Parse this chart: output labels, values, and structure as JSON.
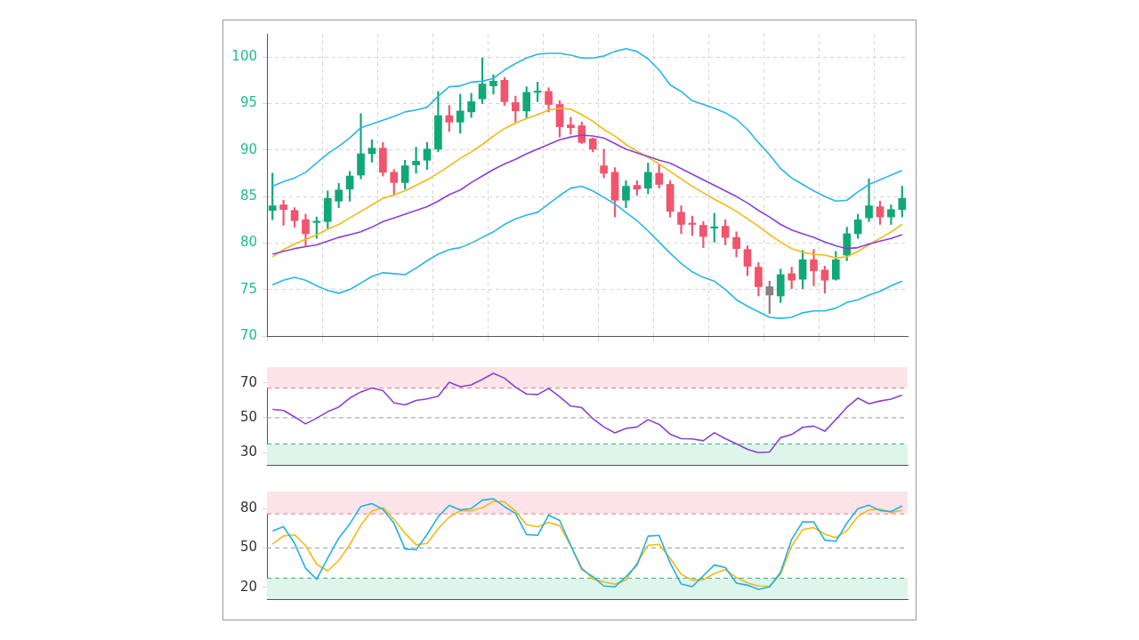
{
  "chart_data": [
    {
      "type": "candlestick",
      "categories": [
        null,
        null,
        null,
        null,
        null,
        null,
        null,
        null,
        null,
        null,
        null,
        null,
        null,
        null,
        null,
        null,
        null,
        null,
        null,
        null,
        null,
        null,
        null,
        null,
        null,
        null,
        null,
        null,
        null,
        null,
        null,
        null,
        null,
        null,
        null,
        null,
        null,
        null,
        null,
        null,
        null,
        null,
        null,
        null,
        null,
        null,
        null,
        null,
        null,
        null,
        null,
        null,
        null,
        null,
        null,
        null,
        null,
        null
      ],
      "ohlc": [
        [
          83.5,
          87.5,
          82.5,
          84.0
        ],
        [
          84.1,
          84.6,
          81.9,
          83.6
        ],
        [
          83.5,
          83.8,
          81.7,
          82.4
        ],
        [
          82.5,
          83.1,
          79.6,
          81.0
        ],
        [
          82.2,
          82.8,
          80.5,
          82.3
        ],
        [
          82.3,
          85.6,
          81.6,
          84.8
        ],
        [
          84.5,
          86.4,
          83.8,
          85.7
        ],
        [
          85.8,
          87.7,
          84.5,
          87.2
        ],
        [
          87.3,
          93.9,
          86.9,
          89.6
        ],
        [
          89.6,
          91.1,
          88.7,
          90.2
        ],
        [
          90.2,
          90.8,
          87.2,
          87.6
        ],
        [
          87.6,
          87.9,
          85.1,
          86.5
        ],
        [
          86.5,
          88.9,
          85.8,
          88.3
        ],
        [
          88.4,
          90.3,
          87.5,
          88.8
        ],
        [
          88.9,
          90.8,
          87.9,
          90.1
        ],
        [
          90.1,
          96.3,
          89.8,
          93.7
        ],
        [
          93.7,
          94.8,
          92.0,
          93.0
        ],
        [
          93.0,
          96.0,
          91.8,
          94.2
        ],
        [
          94.1,
          96.1,
          93.5,
          95.2
        ],
        [
          95.5,
          99.9,
          95.0,
          97.1
        ],
        [
          96.9,
          98.1,
          96.0,
          97.4
        ],
        [
          97.5,
          97.8,
          94.8,
          95.2
        ],
        [
          95.1,
          95.8,
          93.0,
          94.2
        ],
        [
          94.2,
          96.8,
          93.4,
          96.2
        ],
        [
          96.2,
          97.3,
          95.2,
          96.3
        ],
        [
          96.3,
          96.7,
          94.1,
          94.9
        ],
        [
          94.9,
          95.3,
          91.4,
          92.5
        ],
        [
          92.7,
          93.5,
          91.7,
          92.4
        ],
        [
          92.6,
          93.0,
          90.7,
          90.8
        ],
        [
          91.2,
          91.3,
          89.8,
          90.1
        ],
        [
          88.3,
          90.1,
          87.0,
          87.5
        ],
        [
          87.6,
          88.1,
          82.8,
          84.6
        ],
        [
          84.6,
          86.7,
          83.8,
          86.1
        ],
        [
          86.2,
          86.7,
          85.1,
          85.8
        ],
        [
          85.9,
          88.6,
          85.3,
          87.6
        ],
        [
          87.5,
          88.5,
          85.9,
          86.3
        ],
        [
          86.3,
          86.7,
          82.8,
          83.4
        ],
        [
          83.3,
          84.0,
          81.0,
          82.0
        ],
        [
          82.1,
          82.9,
          80.8,
          82.0
        ],
        [
          81.9,
          82.3,
          79.5,
          80.7
        ],
        [
          81.6,
          83.2,
          80.1,
          81.7
        ],
        [
          81.8,
          82.5,
          79.8,
          80.6
        ],
        [
          80.6,
          81.2,
          78.5,
          79.4
        ],
        [
          79.3,
          79.7,
          76.5,
          77.5
        ],
        [
          77.4,
          77.9,
          74.3,
          75.3
        ],
        [
          75.3,
          75.9,
          72.4,
          74.4
        ],
        [
          74.3,
          77.2,
          73.6,
          76.6
        ],
        [
          76.7,
          77.4,
          75.1,
          76.0
        ],
        [
          76.1,
          79.2,
          75.1,
          78.2
        ],
        [
          78.2,
          79.3,
          75.4,
          77.0
        ],
        [
          77.1,
          77.5,
          74.6,
          76.0
        ],
        [
          76.1,
          79.1,
          76.0,
          78.2
        ],
        [
          78.7,
          81.7,
          78.1,
          81.0
        ],
        [
          81.0,
          83.1,
          80.5,
          82.5
        ],
        [
          82.7,
          86.9,
          82.3,
          84.0
        ],
        [
          83.9,
          84.5,
          82.0,
          82.8
        ],
        [
          82.8,
          84.1,
          82.0,
          83.6
        ],
        [
          83.6,
          86.1,
          82.8,
          84.8
        ]
      ],
      "colors": [
        "#10a877",
        "#f2546e",
        "#f2546e",
        "#f2546e",
        "#10a877",
        "#10a877",
        "#10a877",
        "#10a877",
        "#10a877",
        "#10a877",
        "#f2546e",
        "#f2546e",
        "#10a877",
        "#10a877",
        "#10a877",
        "#10a877",
        "#f2546e",
        "#10a877",
        "#10a877",
        "#10a877",
        "#10a877",
        "#f2546e",
        "#f2546e",
        "#10a877",
        "#10a877",
        "#f2546e",
        "#f2546e",
        "#f2546e",
        "#f2546e",
        "#f2546e",
        "#f2546e",
        "#f2546e",
        "#10a877",
        "#f2546e",
        "#10a877",
        "#f2546e",
        "#f2546e",
        "#f2546e",
        "#f2546e",
        "#f2546e",
        "#10a877",
        "#f2546e",
        "#f2546e",
        "#f2546e",
        "#f2546e",
        "#8c7f80",
        "#10a877",
        "#f2546e",
        "#10a877",
        "#f2546e",
        "#f2546e",
        "#10a877",
        "#10a877",
        "#10a877",
        "#10a877",
        "#f2546e",
        "#10a877",
        "#10a877"
      ],
      "series": [
        {
          "type": "line",
          "color": "#29b6e8",
          "values": [
            86.1,
            86.6,
            87.0,
            87.6,
            88.6,
            89.6,
            90.4,
            91.3,
            92.4,
            92.8,
            93.2,
            93.6,
            94.1,
            94.3,
            94.6,
            95.8,
            96.8,
            96.9,
            97.3,
            97.4,
            97.7,
            98.6,
            99.3,
            99.9,
            100.3,
            100.4,
            100.4,
            100.2,
            99.9,
            99.9,
            100.1,
            100.6,
            100.9,
            100.6,
            99.8,
            98.6,
            97.0,
            96.3,
            95.3,
            94.9,
            94.5,
            94.0,
            93.3,
            92.2,
            90.8,
            89.5,
            88.0,
            87.0,
            86.3,
            85.6,
            85.0,
            84.5,
            84.6,
            85.5,
            86.3,
            86.8,
            87.3,
            87.8
          ]
        },
        {
          "type": "line",
          "color": "#29b6e8",
          "values": [
            75.5,
            76.0,
            76.3,
            76.0,
            75.4,
            74.9,
            74.6,
            75.0,
            75.7,
            76.4,
            76.8,
            76.7,
            76.6,
            77.3,
            78.1,
            78.8,
            79.3,
            79.5,
            80.0,
            80.6,
            81.2,
            82.0,
            82.6,
            83.0,
            83.3,
            84.2,
            85.1,
            85.9,
            86.1,
            85.6,
            84.9,
            84.2,
            83.3,
            82.4,
            81.3,
            80.1,
            78.9,
            77.8,
            76.9,
            76.3,
            75.9,
            75.0,
            73.9,
            73.2,
            72.6,
            72.0,
            71.9,
            72.0,
            72.5,
            72.7,
            72.7,
            73.0,
            73.6,
            73.9,
            74.4,
            74.8,
            75.4,
            75.9
          ]
        },
        {
          "type": "line",
          "color": "#8e3fd6",
          "values": [
            78.8,
            79.1,
            79.4,
            79.6,
            79.8,
            80.2,
            80.6,
            80.9,
            81.2,
            81.7,
            82.3,
            82.7,
            83.1,
            83.5,
            83.9,
            84.5,
            85.2,
            85.7,
            86.5,
            87.2,
            87.9,
            88.5,
            89.0,
            89.6,
            90.1,
            90.6,
            91.1,
            91.4,
            91.6,
            91.5,
            91.3,
            90.7,
            90.1,
            89.7,
            89.3,
            88.9,
            88.6,
            88.0,
            87.4,
            86.8,
            86.2,
            85.6,
            85.0,
            84.3,
            83.5,
            82.8,
            82.0,
            81.4,
            81.0,
            80.6,
            80.1,
            79.7,
            79.4,
            79.5,
            79.9,
            80.2,
            80.5,
            80.9
          ]
        },
        {
          "type": "line",
          "color": "#f5b915",
          "values": [
            78.5,
            79.3,
            79.9,
            80.4,
            80.9,
            81.5,
            82.0,
            82.7,
            83.4,
            84.1,
            84.8,
            85.2,
            85.6,
            86.2,
            86.8,
            87.5,
            88.3,
            89.1,
            89.8,
            90.6,
            91.5,
            92.3,
            92.9,
            93.4,
            93.8,
            94.3,
            94.5,
            94.4,
            93.8,
            93.1,
            92.2,
            91.5,
            90.6,
            89.9,
            89.2,
            88.5,
            87.7,
            86.9,
            86.1,
            85.4,
            84.7,
            84.1,
            83.4,
            82.6,
            81.8,
            80.9,
            80.1,
            79.4,
            79.0,
            78.8,
            78.7,
            78.4,
            78.5,
            79.1,
            79.8,
            80.5,
            81.2,
            82.0
          ]
        }
      ],
      "ylim": [
        70,
        102.5
      ],
      "yticks": [
        70,
        75,
        80,
        85,
        90,
        95,
        100
      ],
      "grid": true,
      "tick_labels": "y"
    },
    {
      "type": "line",
      "categories": [
        null,
        null,
        null,
        null,
        null,
        null,
        null,
        null,
        null,
        null,
        null,
        null,
        null,
        null,
        null,
        null,
        null,
        null,
        null,
        null,
        null,
        null,
        null,
        null,
        null,
        null,
        null,
        null,
        null,
        null,
        null,
        null,
        null,
        null,
        null,
        null,
        null,
        null,
        null,
        null,
        null,
        null,
        null,
        null,
        null,
        null,
        null,
        null,
        null,
        null,
        null,
        null,
        null,
        null,
        null,
        null,
        null,
        null
      ],
      "series": [
        {
          "color": "#8e3fd6",
          "values": [
            54.8,
            54.2,
            50.5,
            46.5,
            49.8,
            53.5,
            56.1,
            61.3,
            64.8,
            67.0,
            65.5,
            58.5,
            57.4,
            59.9,
            60.8,
            62.3,
            70.3,
            67.8,
            68.8,
            72.0,
            75.4,
            72.7,
            67.5,
            63.6,
            63.3,
            66.8,
            62.0,
            56.7,
            55.8,
            49.5,
            44.7,
            41.3,
            43.9,
            44.7,
            48.9,
            46.2,
            40.6,
            38.0,
            37.9,
            36.8,
            41.4,
            38.0,
            35.1,
            31.9,
            30.0,
            30.4,
            38.6,
            40.4,
            44.5,
            45.2,
            42.3,
            49.0,
            56.0,
            61.3,
            58.0,
            59.6,
            60.7,
            63.0
          ]
        }
      ],
      "ylim": [
        23,
        79
      ],
      "yticks": [
        30,
        50,
        70
      ],
      "tick_labels": "y",
      "bands": [
        {
          "axis": "y",
          "from": 67,
          "to": 79,
          "color": "#fde4e8"
        },
        {
          "axis": "y",
          "from": 23,
          "to": 35,
          "color": "#ddf5ea"
        }
      ],
      "ref_lines": [
        {
          "axis": "y",
          "value": 67,
          "color": "#e8788c",
          "line_style": "dashed"
        },
        {
          "axis": "y",
          "value": 50,
          "color": "#9a9a9a",
          "line_style": "dashed"
        },
        {
          "axis": "y",
          "value": 35,
          "color": "#2bb57a",
          "line_style": "dashed"
        }
      ]
    },
    {
      "type": "line",
      "categories": [
        null,
        null,
        null,
        null,
        null,
        null,
        null,
        null,
        null,
        null,
        null,
        null,
        null,
        null,
        null,
        null,
        null,
        null,
        null,
        null,
        null,
        null,
        null,
        null,
        null,
        null,
        null,
        null,
        null,
        null,
        null,
        null,
        null,
        null,
        null,
        null,
        null,
        null,
        null,
        null,
        null,
        null,
        null,
        null,
        null,
        null,
        null,
        null,
        null,
        null,
        null,
        null,
        null,
        null,
        null,
        null,
        null,
        null
      ],
      "series": [
        {
          "color": "#22b0e6",
          "values": [
            63.0,
            66.2,
            53.5,
            34.5,
            26.2,
            42.2,
            57.5,
            68.3,
            81.7,
            83.9,
            79.5,
            68.9,
            49.2,
            48.6,
            60.3,
            73.8,
            82.5,
            79.0,
            80.0,
            86.5,
            87.5,
            81.5,
            76.3,
            60.2,
            59.6,
            75.0,
            71.0,
            52.0,
            33.6,
            28.2,
            21.0,
            20.3,
            28.0,
            37.0,
            59.0,
            59.6,
            38.5,
            22.5,
            20.5,
            28.8,
            37.0,
            35.0,
            23.2,
            21.6,
            18.5,
            20.3,
            31.5,
            56.5,
            70.0,
            69.8,
            56.0,
            55.0,
            69.0,
            80.0,
            82.6,
            78.5,
            77.8,
            82.0
          ]
        },
        {
          "color": "#f5b915",
          "values": [
            53.0,
            59.2,
            60.0,
            51.8,
            37.6,
            32.5,
            40.5,
            52.5,
            67.4,
            78.3,
            80.7,
            71.8,
            61.2,
            52.4,
            53.5,
            64.7,
            73.5,
            78.3,
            78.3,
            80.6,
            85.5,
            85.1,
            78.0,
            67.8,
            66.0,
            69.4,
            67.0,
            51.8,
            35.0,
            26.5,
            24.0,
            22.4,
            25.5,
            38.5,
            52.0,
            52.9,
            42.0,
            30.0,
            25.5,
            25.8,
            30.5,
            33.5,
            27.5,
            23.4,
            21.0,
            20.8,
            30.0,
            51.5,
            64.0,
            65.5,
            60.5,
            57.8,
            63.2,
            74.0,
            79.0,
            79.6,
            77.0,
            78.8
          ]
        }
      ],
      "ylim": [
        11,
        93
      ],
      "yticks": [
        20,
        50,
        80
      ],
      "tick_labels": "y",
      "bands": [
        {
          "axis": "y",
          "from": 76,
          "to": 93,
          "color": "#fde4e8"
        },
        {
          "axis": "y",
          "from": 11,
          "to": 27,
          "color": "#ddf5ea"
        }
      ],
      "ref_lines": [
        {
          "axis": "y",
          "value": 76,
          "color": "#e8788c",
          "line_style": "dashed"
        },
        {
          "axis": "y",
          "value": 50,
          "color": "#9a9a9a",
          "line_style": "dashed"
        },
        {
          "axis": "y",
          "value": 27,
          "color": "#2bb57a",
          "line_style": "dashed"
        }
      ]
    }
  ]
}
